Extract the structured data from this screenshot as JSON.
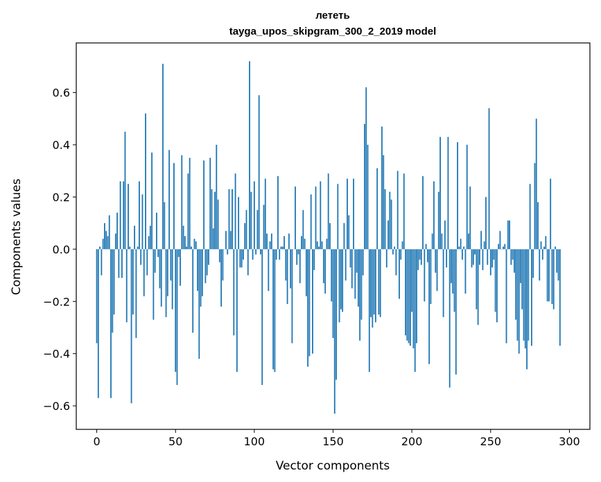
{
  "chart_data": {
    "type": "bar",
    "title": "лететь",
    "subtitle": "tayga_upos_skipgram_300_2_2019 model",
    "xlabel": "Vector components",
    "ylabel": "Components values",
    "xlim": [
      -13,
      313
    ],
    "ylim": [
      -0.69,
      0.79
    ],
    "xticks": [
      0,
      50,
      100,
      150,
      200,
      250,
      300
    ],
    "yticks": [
      -0.6,
      -0.4,
      -0.2,
      0.0,
      0.2,
      0.4,
      0.6
    ],
    "ytick_labels": [
      "−0.6",
      "−0.4",
      "−0.2",
      "0.0",
      "0.2",
      "0.4",
      "0.6"
    ],
    "bar_color": "#1f77b4",
    "grid": false,
    "legend": "none",
    "values": [
      -0.36,
      -0.57,
      0.01,
      -0.1,
      0.04,
      0.1,
      0.07,
      0.05,
      0.13,
      -0.57,
      -0.32,
      -0.25,
      0.06,
      0.14,
      -0.11,
      0.26,
      -0.11,
      0.26,
      0.45,
      -0.28,
      0.25,
      0.01,
      -0.59,
      -0.25,
      0.09,
      -0.34,
      0.01,
      0.26,
      -0.06,
      0.21,
      -0.18,
      0.52,
      -0.1,
      0.05,
      0.09,
      0.37,
      -0.27,
      -0.09,
      0.14,
      -0.03,
      -0.15,
      -0.22,
      0.71,
      0.18,
      -0.26,
      -0.18,
      0.38,
      -0.12,
      -0.23,
      0.33,
      -0.47,
      -0.52,
      -0.03,
      -0.14,
      0.36,
      0.09,
      0.05,
      0.01,
      0.29,
      0.35,
      0.01,
      -0.32,
      0.04,
      0.03,
      -0.16,
      -0.42,
      -0.22,
      -0.18,
      0.34,
      -0.13,
      -0.1,
      -0.06,
      0.35,
      0.23,
      0.08,
      0.22,
      0.4,
      0.19,
      -0.05,
      -0.22,
      -0.12,
      0.0,
      0.07,
      -0.02,
      0.23,
      0.07,
      0.23,
      -0.33,
      0.29,
      -0.47,
      0.2,
      -0.07,
      -0.07,
      -0.04,
      0.1,
      0.15,
      -0.1,
      0.72,
      0.22,
      -0.04,
      0.26,
      -0.02,
      0.15,
      0.59,
      -0.02,
      -0.52,
      0.17,
      0.27,
      0.06,
      -0.16,
      0.03,
      0.06,
      -0.46,
      -0.47,
      -0.04,
      0.28,
      -0.04,
      0.01,
      0.01,
      0.05,
      -0.12,
      -0.21,
      0.06,
      -0.15,
      -0.36,
      0.0,
      0.24,
      -0.06,
      -0.02,
      -0.13,
      0.05,
      0.15,
      0.04,
      -0.18,
      -0.45,
      -0.41,
      0.21,
      -0.4,
      -0.08,
      0.24,
      0.03,
      0.01,
      0.26,
      0.03,
      -0.13,
      -0.17,
      0.04,
      0.29,
      0.1,
      -0.2,
      -0.34,
      -0.63,
      -0.5,
      0.25,
      -0.28,
      -0.23,
      -0.24,
      0.1,
      -0.12,
      0.27,
      0.13,
      -0.07,
      -0.15,
      0.27,
      -0.19,
      -0.09,
      -0.22,
      -0.35,
      -0.27,
      -0.1,
      0.48,
      0.62,
      0.4,
      -0.47,
      -0.26,
      -0.3,
      -0.25,
      -0.28,
      0.31,
      -0.25,
      -0.26,
      0.47,
      0.36,
      0.23,
      -0.07,
      0.11,
      0.22,
      0.19,
      -0.02,
      0.01,
      -0.1,
      0.3,
      -0.19,
      -0.04,
      0.03,
      0.29,
      -0.33,
      -0.35,
      -0.36,
      -0.37,
      -0.24,
      -0.38,
      -0.47,
      -0.36,
      -0.08,
      -0.04,
      -0.06,
      0.28,
      -0.2,
      0.02,
      -0.05,
      -0.44,
      -0.21,
      0.06,
      0.26,
      -0.09,
      -0.16,
      0.22,
      0.43,
      0.06,
      -0.26,
      0.11,
      -0.07,
      0.43,
      -0.53,
      -0.13,
      -0.17,
      -0.24,
      -0.48,
      0.41,
      0.01,
      0.04,
      -0.04,
      0.01,
      -0.17,
      0.4,
      0.06,
      0.24,
      -0.07,
      -0.06,
      -0.02,
      -0.23,
      -0.29,
      -0.06,
      0.07,
      -0.08,
      0.03,
      0.2,
      -0.06,
      0.54,
      -0.1,
      -0.07,
      -0.04,
      -0.24,
      -0.28,
      0.02,
      0.07,
      0.0,
      0.01,
      0.02,
      -0.36,
      0.11,
      0.11,
      -0.06,
      -0.04,
      -0.09,
      -0.27,
      -0.35,
      -0.4,
      -0.13,
      -0.23,
      -0.35,
      -0.38,
      -0.46,
      -0.35,
      0.25,
      -0.37,
      -0.11,
      0.33,
      0.5,
      0.18,
      -0.12,
      0.03,
      -0.04,
      0.01,
      0.05,
      -0.2,
      -0.2,
      0.27,
      -0.21,
      -0.23,
      0.01,
      -0.09,
      -0.12,
      -0.37
    ]
  }
}
